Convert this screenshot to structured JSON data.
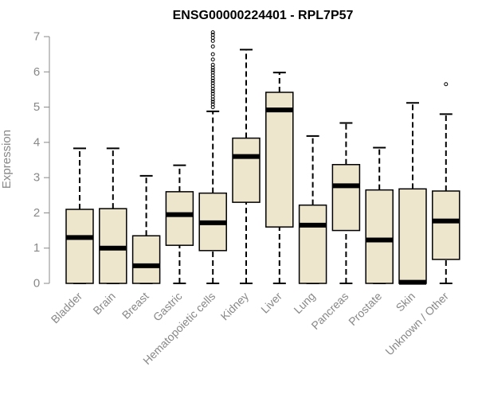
{
  "chart_data": {
    "type": "boxplot",
    "title": "ENSG00000224401 - RPL7P57",
    "xlabel": "",
    "ylabel": "Expression",
    "ylim": [
      0,
      7
    ],
    "yticks": [
      0,
      1,
      2,
      3,
      4,
      5,
      6,
      7
    ],
    "box_fill": "#ede6cc",
    "categories": [
      "Bladder",
      "Brain",
      "Breast",
      "Gastric",
      "Hematopoietic cells",
      "Kidney",
      "Liver",
      "Lung",
      "Pancreas",
      "Prostate",
      "Skin",
      "Unknown / Other"
    ],
    "boxes": [
      {
        "whisker_low": 0,
        "q1": 0,
        "median": 1.3,
        "q3": 2.1,
        "whisker_high": 3.83,
        "outliers": []
      },
      {
        "whisker_low": 0,
        "q1": 0,
        "median": 1.0,
        "q3": 2.12,
        "whisker_high": 3.83,
        "outliers": []
      },
      {
        "whisker_low": 0,
        "q1": 0,
        "median": 0.5,
        "q3": 1.35,
        "whisker_high": 3.05,
        "outliers": []
      },
      {
        "whisker_low": 0,
        "q1": 1.08,
        "median": 1.95,
        "q3": 2.6,
        "whisker_high": 3.35,
        "outliers": []
      },
      {
        "whisker_low": 0,
        "q1": 0.93,
        "median": 1.72,
        "q3": 2.56,
        "whisker_high": 4.88,
        "outliers": [
          5.0,
          5.08,
          5.15,
          5.22,
          5.3,
          5.38,
          5.45,
          5.52,
          5.6,
          5.68,
          5.75,
          5.82,
          5.9,
          5.98,
          6.05,
          6.12,
          6.2,
          6.35,
          6.5,
          6.72,
          6.88,
          6.97,
          7.05,
          7.12
        ]
      },
      {
        "whisker_low": 0,
        "q1": 2.3,
        "median": 3.6,
        "q3": 4.12,
        "whisker_high": 6.63,
        "outliers": []
      },
      {
        "whisker_low": 0,
        "q1": 1.6,
        "median": 4.92,
        "q3": 5.42,
        "whisker_high": 5.98,
        "outliers": []
      },
      {
        "whisker_low": 0,
        "q1": 0,
        "median": 1.65,
        "q3": 2.22,
        "whisker_high": 4.18,
        "outliers": []
      },
      {
        "whisker_low": 0,
        "q1": 1.5,
        "median": 2.77,
        "q3": 3.37,
        "whisker_high": 4.55,
        "outliers": []
      },
      {
        "whisker_low": 0,
        "q1": 0,
        "median": 1.23,
        "q3": 2.65,
        "whisker_high": 3.85,
        "outliers": []
      },
      {
        "whisker_low": 0,
        "q1": 0,
        "median": 0.03,
        "q3": 2.68,
        "whisker_high": 5.12,
        "outliers": []
      },
      {
        "whisker_low": 0,
        "q1": 0.68,
        "median": 1.77,
        "q3": 2.62,
        "whisker_high": 4.8,
        "outliers": [
          5.65
        ]
      }
    ]
  }
}
